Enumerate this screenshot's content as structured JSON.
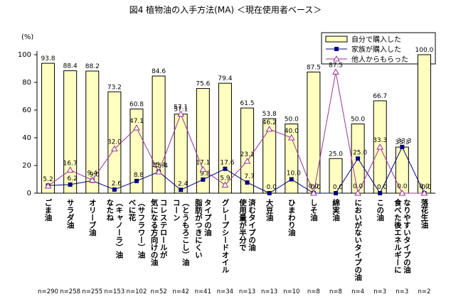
{
  "chart_data": {
    "type": "bar_line",
    "title": "図4 植物油の入手方法(MA) ＜現在使用者ベース＞",
    "y_label": "(%)",
    "ylim": [
      0,
      100
    ],
    "yticks": [
      0,
      20,
      40,
      60,
      80,
      100
    ],
    "categories": [
      [
        "ごま油"
      ],
      [
        "サラダ油"
      ],
      [
        "オリーブ油"
      ],
      [
        "なたね",
        "（キャノーラ）油"
      ],
      [
        "べに花",
        "（サフラワー）油"
      ],
      [
        "気になる方向けの油",
        "コレステロールが"
      ],
      [
        "コーン",
        "（とうもろこし）油"
      ],
      [
        "脂肪がつきにくい",
        "タイプの油"
      ],
      [
        "グレープシードオイル"
      ],
      [
        "使用量が半分で",
        "済むタイプの油"
      ],
      [
        "大豆油"
      ],
      [
        "ひまわり油"
      ],
      [
        "しそ油"
      ],
      [
        "綿実油"
      ],
      [
        "においがないタイプの油"
      ],
      [
        "この油"
      ],
      [
        "食べた後エネルギーに",
        "なりやすいタイプの油"
      ],
      [
        "落花生油"
      ]
    ],
    "n_labels": [
      "n=290",
      "n=258",
      "n=255",
      "n=153",
      "n=102",
      "n=52",
      "n=42",
      "n=41",
      "n=34",
      "n=13",
      "n=13",
      "n=10",
      "n=8",
      "n=8",
      "n=4",
      "n=3",
      "n=3",
      "n=2"
    ],
    "series": [
      {
        "name": "自分で購入した",
        "kind": "bar",
        "color": "#ffffc0",
        "values": [
          93.8,
          88.4,
          88.2,
          73.2,
          60.8,
          84.6,
          57.1,
          75.6,
          79.4,
          61.5,
          53.8,
          50,
          87.5,
          25,
          50,
          66.7,
          33.3,
          100
        ],
        "value_labels": [
          "93.8",
          "88.4",
          "88.2",
          "73.2",
          "60.8",
          "84.6",
          "57.1",
          "75.6",
          "79.4",
          "61.5",
          "53.8",
          "50.0",
          "87.5",
          "25.0",
          "50.0",
          "66.7",
          "33.3",
          "100.0"
        ]
      },
      {
        "name": "家族が購入した",
        "kind": "line",
        "marker": "square",
        "color": "#000080",
        "values": [
          5.5,
          6.2,
          9.0,
          2.6,
          8.8,
          15.4,
          2.4,
          9.8,
          17.6,
          7.7,
          0,
          10,
          0,
          0,
          25,
          0,
          33.3,
          0
        ],
        "value_labels": [
          null,
          "6.2",
          "9.0",
          "2.6",
          "8.8",
          "15.4",
          "2.4",
          "9.8",
          "17.6",
          "7.7",
          "0.0",
          "10.0",
          "0.0",
          "0.0",
          "25.0",
          "0.0",
          "33.3",
          "0.0"
        ]
      },
      {
        "name": "他人からもらった",
        "kind": "line",
        "marker": "triangle",
        "color": "#993399",
        "values": [
          5.2,
          16.7,
          9.4,
          32.0,
          47.1,
          15.4,
          57.1,
          17.1,
          5.9,
          23.1,
          46.2,
          40,
          0,
          87.5,
          0,
          33.3,
          0,
          0
        ],
        "value_labels": [
          "5.2",
          "16.7",
          "9.4",
          "32.0",
          "47.1",
          "15.4",
          "57.1",
          "17.1",
          "5.9",
          "23.1",
          "46.2",
          "40.0",
          "0.0",
          "87.5",
          "0.0",
          "33.3",
          "0.0",
          "0.0"
        ]
      }
    ]
  }
}
